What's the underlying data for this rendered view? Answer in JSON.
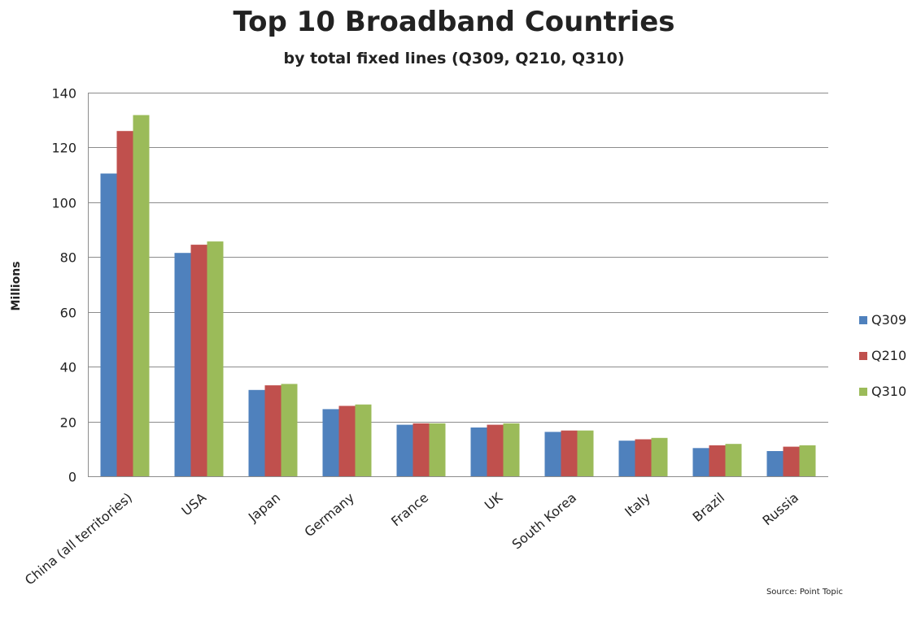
{
  "chart_data": {
    "type": "bar",
    "title": "Top 10 Broadband Countries",
    "subtitle": "by total fixed lines (Q309, Q210, Q310)",
    "ylabel": "Millions",
    "xlabel": "",
    "ylim": [
      0,
      140
    ],
    "yticks": [
      "0",
      "20",
      "40",
      "60",
      "80",
      "100",
      "120",
      "140"
    ],
    "grid": true,
    "legend_position": "right",
    "categories": [
      "China (all territories)",
      "USA",
      "Japan",
      "Germany",
      "France",
      "UK",
      "South Korea",
      "Italy",
      "Brazil",
      "Russia"
    ],
    "series": [
      {
        "name": "Q309",
        "color": "#4f81bd",
        "values": [
          110.5,
          81.5,
          31.5,
          24.5,
          18.8,
          17.8,
          16.2,
          13.0,
          10.3,
          9.2
        ]
      },
      {
        "name": "Q210",
        "color": "#c0504d",
        "values": [
          126,
          84.5,
          33.2,
          25.7,
          19.3,
          18.8,
          16.7,
          13.5,
          11.3,
          10.8
        ]
      },
      {
        "name": "Q310",
        "color": "#9bbb59",
        "values": [
          131.8,
          85.7,
          33.7,
          26.2,
          19.3,
          19.3,
          16.7,
          14.0,
          11.8,
          11.3
        ]
      }
    ],
    "source": "Source: Point Topic"
  }
}
